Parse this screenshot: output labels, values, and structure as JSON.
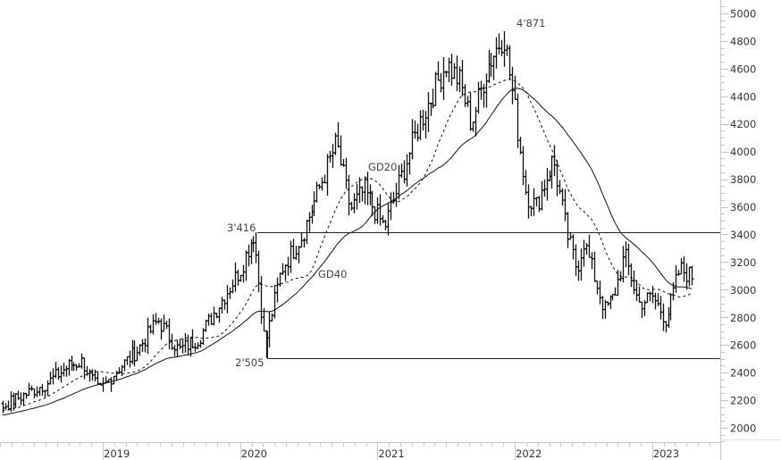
{
  "chart_data": {
    "type": "ohlc",
    "title": "",
    "xlabel": "",
    "ylabel": "",
    "ylim": [
      1900,
      5050
    ],
    "y_ticks": [
      2000,
      2200,
      2400,
      2600,
      2800,
      3000,
      3200,
      3400,
      3600,
      3800,
      4000,
      4200,
      4400,
      4600,
      4800,
      5000
    ],
    "x_ticks": [
      "2019",
      "2020",
      "2021",
      "2022",
      "2023"
    ],
    "x_range": [
      "2018-04",
      "2023-05"
    ],
    "grid": false,
    "legend": "none",
    "price_path": [
      {
        "t": 2018.25,
        "v": 2150
      },
      {
        "t": 2018.45,
        "v": 2250
      },
      {
        "t": 2018.6,
        "v": 2330
      },
      {
        "t": 2018.75,
        "v": 2450
      },
      {
        "t": 2018.85,
        "v": 2480
      },
      {
        "t": 2018.97,
        "v": 2260
      },
      {
        "t": 2019.1,
        "v": 2420
      },
      {
        "t": 2019.25,
        "v": 2560
      },
      {
        "t": 2019.4,
        "v": 2780
      },
      {
        "t": 2019.55,
        "v": 2560
      },
      {
        "t": 2019.7,
        "v": 2650
      },
      {
        "t": 2019.85,
        "v": 2900
      },
      {
        "t": 2020.0,
        "v": 3150
      },
      {
        "t": 2020.1,
        "v": 3410
      },
      {
        "t": 2020.18,
        "v": 2600
      },
      {
        "t": 2020.3,
        "v": 3150
      },
      {
        "t": 2020.45,
        "v": 3400
      },
      {
        "t": 2020.6,
        "v": 3800
      },
      {
        "t": 2020.7,
        "v": 4060
      },
      {
        "t": 2020.8,
        "v": 3580
      },
      {
        "t": 2020.9,
        "v": 3720
      },
      {
        "t": 2021.05,
        "v": 3450
      },
      {
        "t": 2021.15,
        "v": 3750
      },
      {
        "t": 2021.3,
        "v": 4200
      },
      {
        "t": 2021.5,
        "v": 4640
      },
      {
        "t": 2021.6,
        "v": 4500
      },
      {
        "t": 2021.68,
        "v": 4200
      },
      {
        "t": 2021.8,
        "v": 4620
      },
      {
        "t": 2021.92,
        "v": 4850
      },
      {
        "t": 2022.0,
        "v": 4300
      },
      {
        "t": 2022.08,
        "v": 3700
      },
      {
        "t": 2022.15,
        "v": 3600
      },
      {
        "t": 2022.28,
        "v": 3950
      },
      {
        "t": 2022.38,
        "v": 3400
      },
      {
        "t": 2022.45,
        "v": 3150
      },
      {
        "t": 2022.5,
        "v": 3350
      },
      {
        "t": 2022.65,
        "v": 2850
      },
      {
        "t": 2022.72,
        "v": 2950
      },
      {
        "t": 2022.8,
        "v": 3250
      },
      {
        "t": 2022.9,
        "v": 2900
      },
      {
        "t": 2023.0,
        "v": 2950
      },
      {
        "t": 2023.1,
        "v": 2780
      },
      {
        "t": 2023.2,
        "v": 3150
      },
      {
        "t": 2023.28,
        "v": 3100
      }
    ],
    "series": [
      {
        "name": "Price (weekly OHLC bars)",
        "style": "ohlc",
        "color": "#000000"
      },
      {
        "name": "GD20",
        "style": "dashed",
        "color": "#000000",
        "period": 20
      },
      {
        "name": "GD40",
        "style": "solid",
        "color": "#000000",
        "period": 40
      }
    ],
    "horizontal_lines": [
      {
        "value": 3416,
        "from": "2020-02",
        "label": "3'416"
      },
      {
        "value": 2505,
        "from": "2020-03",
        "label": "2'505"
      }
    ],
    "annotations": [
      {
        "text": "4'871",
        "value": 4871,
        "at": "2021-12"
      },
      {
        "text": "3'416",
        "value": 3416,
        "at": "2020-02"
      },
      {
        "text": "2'505",
        "value": 2505,
        "at": "2020-03"
      },
      {
        "text": "GD20",
        "at": "2020-11"
      },
      {
        "text": "GD40",
        "at": "2020-06"
      }
    ]
  },
  "labels": {
    "peak": "4'871",
    "resistance": "3'416",
    "support": "2'505",
    "gd20": "GD20",
    "gd40": "GD40"
  }
}
